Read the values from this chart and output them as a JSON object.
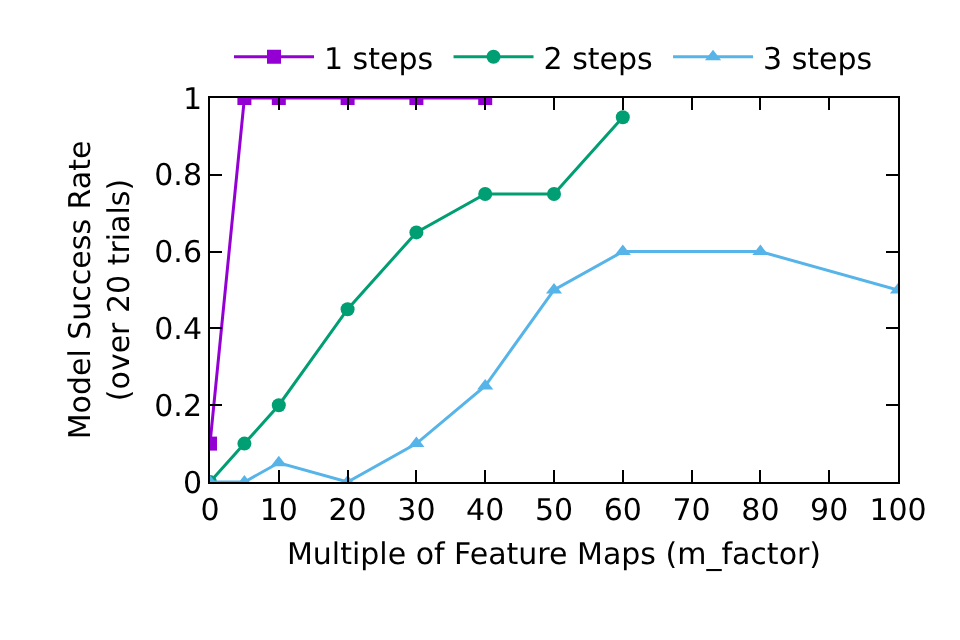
{
  "chart_data": {
    "type": "line",
    "xlabel": "Multiple of Feature Maps (m_factor)",
    "ylabel": "Model Success Rate\n(over 20 trials)",
    "xlim": [
      0,
      100
    ],
    "xticks": [
      0,
      10,
      20,
      30,
      40,
      50,
      60,
      70,
      80,
      90,
      100
    ],
    "ylim": [
      0,
      1
    ],
    "yticks": [
      0,
      0.2,
      0.4,
      0.6,
      0.8,
      1
    ],
    "grid": false,
    "legend": "top",
    "series": [
      {
        "name": "1 steps",
        "color": "#9400d3",
        "marker": "square",
        "x": [
          0,
          5,
          10,
          20,
          30,
          40
        ],
        "values": [
          0.1,
          1,
          1,
          1,
          1,
          1
        ]
      },
      {
        "name": "2 steps",
        "color": "#009e73",
        "marker": "circle",
        "x": [
          0,
          5,
          10,
          20,
          30,
          40,
          50,
          60
        ],
        "values": [
          0,
          0.1,
          0.2,
          0.45,
          0.65,
          0.75,
          0.75,
          0.95
        ]
      },
      {
        "name": "3 steps",
        "color": "#56b4e9",
        "marker": "triangle",
        "x": [
          0,
          5,
          10,
          20,
          30,
          40,
          50,
          60,
          80,
          100
        ],
        "values": [
          0,
          0,
          0.05,
          0,
          0.1,
          0.25,
          0.5,
          0.6,
          0.6,
          0.5
        ]
      }
    ]
  }
}
